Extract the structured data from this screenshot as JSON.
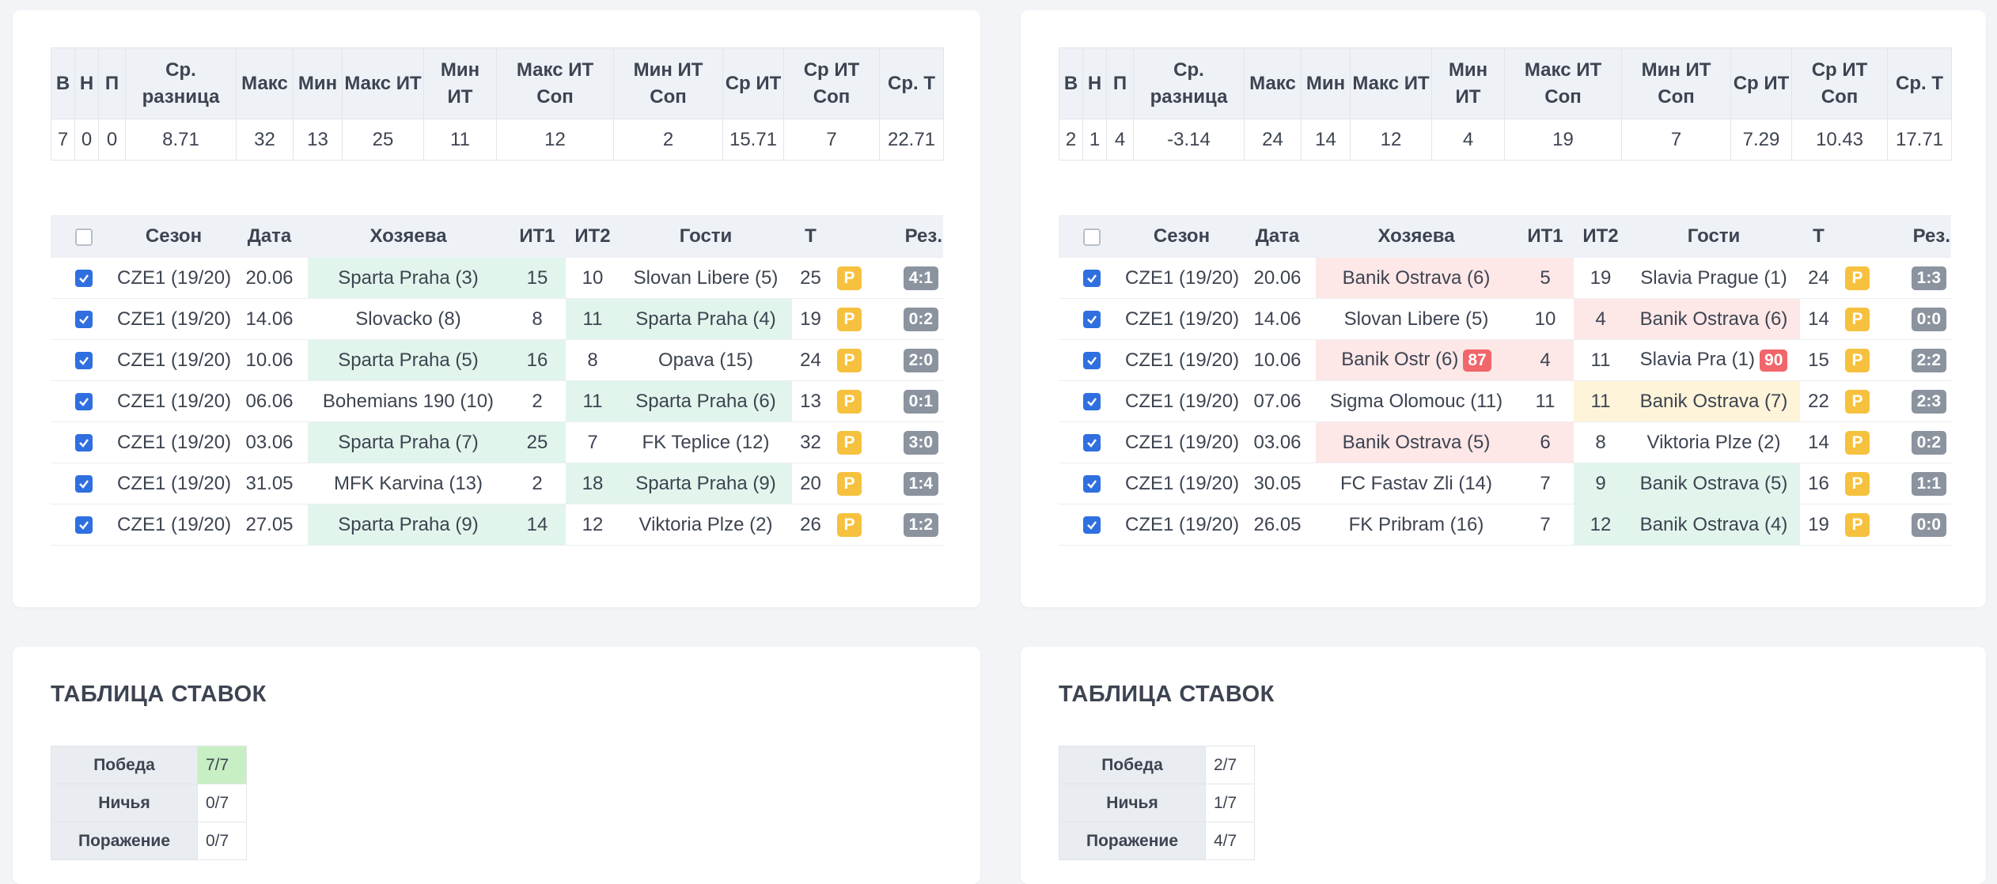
{
  "panels": [
    {
      "stats": {
        "headers": [
          "В",
          "Н",
          "П",
          "Ср. разница",
          "Макс",
          "Мин",
          "Макс ИТ",
          "Мин ИТ",
          "Макс ИТ Соп",
          "Мин ИТ Соп",
          "Ср ИТ",
          "Ср ИТ Соп",
          "Ср. Т"
        ],
        "values": [
          7,
          0,
          0,
          8.71,
          32,
          13,
          25,
          11,
          12,
          2,
          15.71,
          7,
          22.71
        ]
      },
      "matches": {
        "header_checked": false,
        "headers": [
          "Сезон",
          "Дата",
          "Хозяева",
          "ИТ1",
          "ИТ2",
          "Гости",
          "Т",
          "Рез."
        ],
        "rows": [
          {
            "checked": true,
            "season": "CZE1 (19/20)",
            "date": "20.06",
            "home": "Sparta Praha (3)",
            "it1": 15,
            "it2": 10,
            "away": "Slovan Libere (5)",
            "total": 25,
            "badge": "P",
            "result": "4:1",
            "highlight": {
              "side": "home",
              "color": "#e1f5ec"
            }
          },
          {
            "checked": true,
            "season": "CZE1 (19/20)",
            "date": "14.06",
            "home": "Slovacko (8)",
            "it1": 8,
            "it2": 11,
            "away": "Sparta Praha (4)",
            "total": 19,
            "badge": "P",
            "result": "0:2",
            "highlight": {
              "side": "away",
              "color": "#e1f5ec"
            }
          },
          {
            "checked": true,
            "season": "CZE1 (19/20)",
            "date": "10.06",
            "home": "Sparta Praha (5)",
            "it1": 16,
            "it2": 8,
            "away": "Opava (15)",
            "total": 24,
            "badge": "P",
            "result": "2:0",
            "highlight": {
              "side": "home",
              "color": "#e1f5ec"
            }
          },
          {
            "checked": true,
            "season": "CZE1 (19/20)",
            "date": "06.06",
            "home": "Bohemians 190 (10)",
            "it1": 2,
            "it2": 11,
            "away": "Sparta Praha (6)",
            "total": 13,
            "badge": "P",
            "result": "0:1",
            "highlight": {
              "side": "away",
              "color": "#e1f5ec"
            }
          },
          {
            "checked": true,
            "season": "CZE1 (19/20)",
            "date": "03.06",
            "home": "Sparta Praha (7)",
            "it1": 25,
            "it2": 7,
            "away": "FK Teplice (12)",
            "total": 32,
            "badge": "P",
            "result": "3:0",
            "highlight": {
              "side": "home",
              "color": "#e1f5ec"
            }
          },
          {
            "checked": true,
            "season": "CZE1 (19/20)",
            "date": "31.05",
            "home": "MFK Karvina (13)",
            "it1": 2,
            "it2": 18,
            "away": "Sparta Praha (9)",
            "total": 20,
            "badge": "P",
            "result": "1:4",
            "highlight": {
              "side": "away",
              "color": "#e1f5ec"
            }
          },
          {
            "checked": true,
            "season": "CZE1 (19/20)",
            "date": "27.05",
            "home": "Sparta Praha (9)",
            "it1": 14,
            "it2": 12,
            "away": "Viktoria Plze (2)",
            "total": 26,
            "badge": "P",
            "result": "1:2",
            "highlight": {
              "side": "home",
              "color": "#e1f5ec"
            }
          }
        ]
      },
      "bets": {
        "title": "ТАБЛИЦА СТАВОК",
        "rows": [
          {
            "label": "Победа",
            "value": "7/7",
            "color": "#c8efc3"
          },
          {
            "label": "Ничья",
            "value": "0/7"
          },
          {
            "label": "Поражение",
            "value": "0/7"
          }
        ]
      }
    },
    {
      "stats": {
        "headers": [
          "В",
          "Н",
          "П",
          "Ср. разница",
          "Макс",
          "Мин",
          "Макс ИТ",
          "Мин ИТ",
          "Макс ИТ Соп",
          "Мин ИТ Соп",
          "Ср ИТ",
          "Ср ИТ Соп",
          "Ср. Т"
        ],
        "values": [
          2,
          1,
          4,
          -3.14,
          24,
          14,
          12,
          4,
          19,
          7,
          7.29,
          10.43,
          17.71
        ]
      },
      "matches": {
        "header_checked": false,
        "headers": [
          "Сезон",
          "Дата",
          "Хозяева",
          "ИТ1",
          "ИТ2",
          "Гости",
          "Т",
          "Рез."
        ],
        "rows": [
          {
            "checked": true,
            "season": "CZE1 (19/20)",
            "date": "20.06",
            "home": "Banik Ostrava (6)",
            "it1": 5,
            "it2": 19,
            "away": "Slavia Prague (1)",
            "total": 24,
            "badge": "P",
            "result": "1:3",
            "highlight": {
              "side": "home",
              "color": "#fde7e7"
            }
          },
          {
            "checked": true,
            "season": "CZE1 (19/20)",
            "date": "14.06",
            "home": "Slovan Libere (5)",
            "it1": 10,
            "it2": 4,
            "away": "Banik Ostrava (6)",
            "total": 14,
            "badge": "P",
            "result": "0:0",
            "highlight": {
              "side": "away",
              "color": "#fde7e7"
            }
          },
          {
            "checked": true,
            "season": "CZE1 (19/20)",
            "date": "10.06",
            "home": "Banik Ostr (6)",
            "home_badge": 87,
            "it1": 4,
            "it2": 11,
            "away": "Slavia Pra (1)",
            "away_badge": 90,
            "total": 15,
            "badge": "P",
            "result": "2:2",
            "highlight": {
              "side": "home",
              "color": "#fde7e7"
            }
          },
          {
            "checked": true,
            "season": "CZE1 (19/20)",
            "date": "07.06",
            "home": "Sigma Olomouc (11)",
            "it1": 11,
            "it2": 11,
            "away": "Banik Ostrava (7)",
            "total": 22,
            "badge": "P",
            "result": "2:3",
            "highlight": {
              "side": "away",
              "color": "#fdf4d9"
            }
          },
          {
            "checked": true,
            "season": "CZE1 (19/20)",
            "date": "03.06",
            "home": "Banik Ostrava (5)",
            "it1": 6,
            "it2": 8,
            "away": "Viktoria Plze (2)",
            "total": 14,
            "badge": "P",
            "result": "0:2",
            "highlight": {
              "side": "home",
              "color": "#fde7e7"
            }
          },
          {
            "checked": true,
            "season": "CZE1 (19/20)",
            "date": "30.05",
            "home": "FC Fastav Zli (14)",
            "it1": 7,
            "it2": 9,
            "away": "Banik Ostrava (5)",
            "total": 16,
            "badge": "P",
            "result": "1:1",
            "highlight": {
              "side": "away",
              "color": "#e1f5ec"
            }
          },
          {
            "checked": true,
            "season": "CZE1 (19/20)",
            "date": "26.05",
            "home": "FK Pribram (16)",
            "it1": 7,
            "it2": 12,
            "away": "Banik Ostrava (4)",
            "total": 19,
            "badge": "P",
            "result": "0:0",
            "highlight": {
              "side": "away",
              "color": "#e1f5ec"
            }
          }
        ]
      },
      "bets": {
        "title": "ТАБЛИЦА СТАВОК",
        "rows": [
          {
            "label": "Победа",
            "value": "2/7"
          },
          {
            "label": "Ничья",
            "value": "1/7"
          },
          {
            "label": "Поражение",
            "value": "4/7"
          }
        ]
      }
    }
  ]
}
